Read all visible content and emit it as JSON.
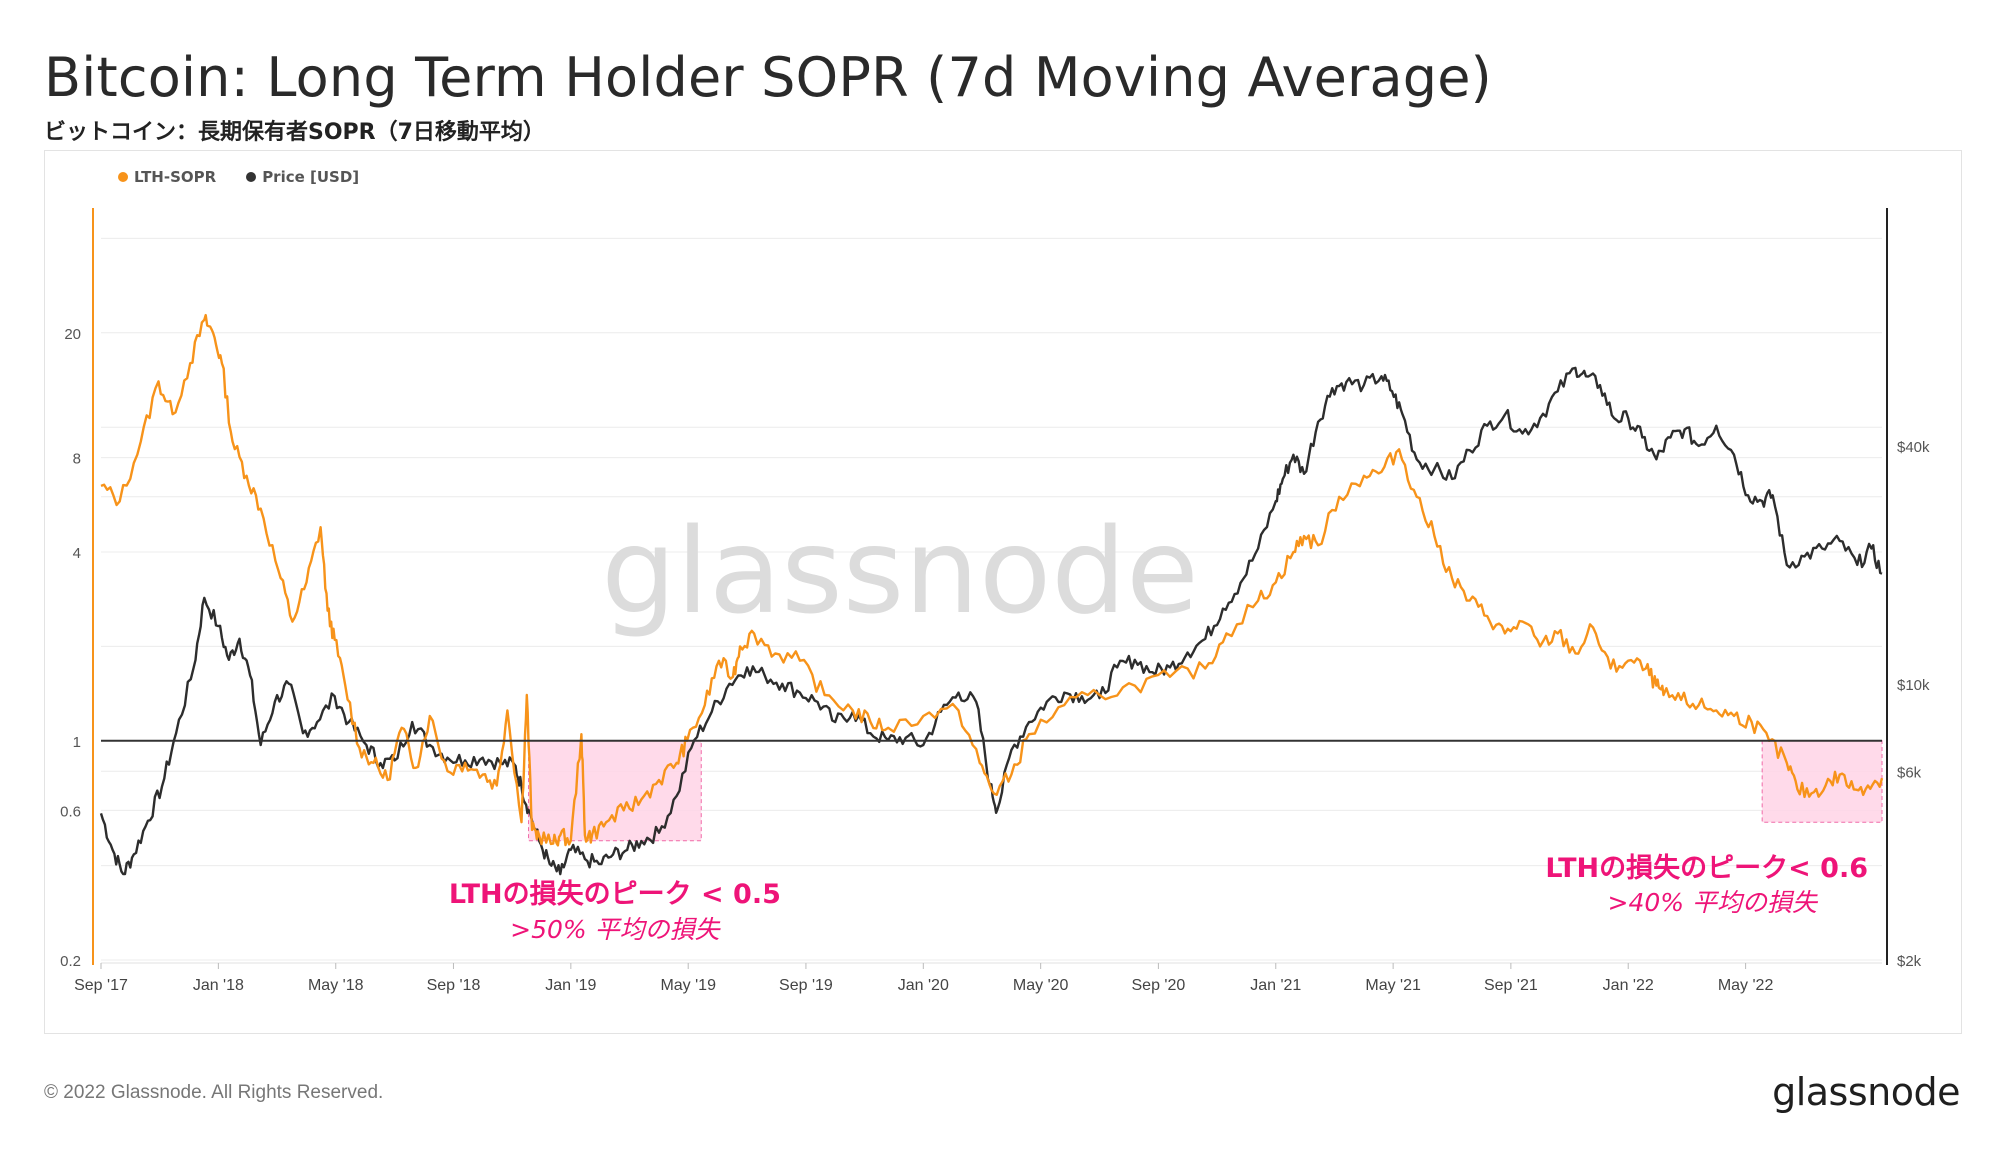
{
  "header": {
    "title": "Bitcoin: Long Term Holder SOPR (7d Moving Average)",
    "subtitle": "ビットコイン：長期保有者SOPR（7日移動平均）"
  },
  "legend": [
    {
      "label": "LTH-SOPR",
      "color": "#f7931a"
    },
    {
      "label": "Price [USD]",
      "color": "#333333"
    }
  ],
  "watermark": "glassnode",
  "footer": {
    "copyright": "© 2022 Glassnode. All Rights Reserved.",
    "logo": "glassnode"
  },
  "colors": {
    "sopr": "#f7931a",
    "price": "#2d2d2d",
    "highlight_fill": "#ffd3e6",
    "highlight_border": "#f06aa8",
    "annotation": "#ee1478",
    "grid": "#ececec"
  },
  "chart_data": {
    "type": "line",
    "title": "Bitcoin: Long Term Holder SOPR (7d Moving Average)",
    "x_range": [
      "2017-09-01",
      "2022-09-25"
    ],
    "x_ticks": [
      {
        "label": "Sep '17",
        "t": 2017.667
      },
      {
        "label": "Jan '18",
        "t": 2018.0
      },
      {
        "label": "May '18",
        "t": 2018.333
      },
      {
        "label": "Sep '18",
        "t": 2018.667
      },
      {
        "label": "Jan '19",
        "t": 2019.0
      },
      {
        "label": "May '19",
        "t": 2019.333
      },
      {
        "label": "Sep '19",
        "t": 2019.667
      },
      {
        "label": "Jan '20",
        "t": 2020.0
      },
      {
        "label": "May '20",
        "t": 2020.333
      },
      {
        "label": "Sep '20",
        "t": 2020.667
      },
      {
        "label": "Jan '21",
        "t": 2021.0
      },
      {
        "label": "May '21",
        "t": 2021.333
      },
      {
        "label": "Sep '21",
        "t": 2021.667
      },
      {
        "label": "Jan '22",
        "t": 2022.0
      },
      {
        "label": "May '22",
        "t": 2022.333
      }
    ],
    "y_left": {
      "name": "LTH-SOPR",
      "scale": "log",
      "range": [
        0.2,
        50
      ],
      "ticks": [
        {
          "label": "0.2",
          "v": 0.2
        },
        {
          "label": "0.6",
          "v": 0.6
        },
        {
          "label": "1",
          "v": 1
        },
        {
          "label": "4",
          "v": 4
        },
        {
          "label": "8",
          "v": 8
        },
        {
          "label": "20",
          "v": 20
        }
      ]
    },
    "y_right": {
      "name": "Price [USD]",
      "scale": "log",
      "range": [
        2000,
        160000
      ],
      "ticks": [
        {
          "label": "$2k",
          "v": 2000
        },
        {
          "label": "$6k",
          "v": 6000
        },
        {
          "label": "$10k",
          "v": 10000
        },
        {
          "label": "$40k",
          "v": 40000
        }
      ]
    },
    "reference_line": {
      "y": 1
    },
    "series": [
      {
        "name": "LTH-SOPR",
        "t": [
          2017.667,
          2017.72,
          2017.78,
          2017.83,
          2017.87,
          2017.92,
          2017.96,
          2017.985,
          2018.01,
          2018.04,
          2018.08,
          2018.12,
          2018.17,
          2018.21,
          2018.25,
          2018.29,
          2018.31,
          2018.33,
          2018.36,
          2018.4,
          2018.44,
          2018.48,
          2018.52,
          2018.56,
          2018.6,
          2018.65,
          2018.7,
          2018.75,
          2018.79,
          2018.82,
          2018.86,
          2018.875,
          2018.89,
          2018.91,
          2018.95,
          2018.97,
          2019.0,
          2019.03,
          2019.04,
          2019.06,
          2019.1,
          2019.15,
          2019.2,
          2019.25,
          2019.3,
          2019.33,
          2019.38,
          2019.42,
          2019.46,
          2019.48,
          2019.52,
          2019.58,
          2019.65,
          2019.72,
          2019.8,
          2019.85,
          2019.9,
          2020.0,
          2020.1,
          2020.16,
          2020.2,
          2020.25,
          2020.3,
          2020.4,
          2020.5,
          2020.6,
          2020.7,
          2020.8,
          2020.86,
          2020.95,
          2021.0,
          2021.05,
          2021.08,
          2021.12,
          2021.18,
          2021.25,
          2021.3,
          2021.35,
          2021.4,
          2021.45,
          2021.5,
          2021.55,
          2021.6,
          2021.65,
          2021.7,
          2021.75,
          2021.8,
          2021.85,
          2021.9,
          2021.95,
          2022.0,
          2022.05,
          2022.08,
          2022.1,
          2022.15,
          2022.2,
          2022.25,
          2022.3,
          2022.35,
          2022.4,
          2022.45,
          2022.48,
          2022.52,
          2022.56,
          2022.6,
          2022.64,
          2022.68,
          2022.72
        ],
        "values": [
          6.5,
          5.8,
          9.0,
          14.0,
          11.0,
          16.0,
          22.0,
          20.0,
          16.0,
          9.0,
          7.0,
          5.5,
          3.5,
          2.4,
          3.2,
          4.8,
          2.6,
          2.1,
          1.5,
          0.95,
          0.85,
          0.75,
          1.1,
          0.82,
          1.2,
          0.8,
          0.85,
          0.78,
          0.72,
          1.25,
          0.55,
          1.4,
          0.52,
          0.5,
          0.47,
          0.5,
          0.48,
          1.05,
          0.5,
          0.5,
          0.55,
          0.6,
          0.65,
          0.75,
          0.85,
          1.0,
          1.3,
          1.8,
          1.6,
          2.0,
          2.2,
          1.9,
          1.8,
          1.4,
          1.25,
          1.15,
          1.1,
          1.2,
          1.25,
          0.85,
          0.68,
          0.78,
          1.05,
          1.3,
          1.4,
          1.5,
          1.6,
          1.7,
          2.2,
          2.8,
          3.2,
          4.0,
          4.5,
          4.2,
          6.0,
          7.0,
          7.2,
          8.5,
          6.0,
          4.5,
          3.3,
          2.8,
          2.5,
          2.2,
          2.4,
          2.0,
          2.2,
          1.9,
          2.3,
          1.7,
          1.8,
          1.7,
          1.5,
          1.4,
          1.35,
          1.3,
          1.25,
          1.2,
          1.15,
          1.0,
          0.85,
          0.7,
          0.68,
          0.72,
          0.78,
          0.7,
          0.72,
          0.76
        ]
      },
      {
        "name": "Price [USD]",
        "t": [
          2017.667,
          2017.7,
          2017.73,
          2017.76,
          2017.8,
          2017.84,
          2017.88,
          2017.93,
          2017.96,
          2018.0,
          2018.03,
          2018.06,
          2018.09,
          2018.12,
          2018.16,
          2018.2,
          2018.24,
          2018.28,
          2018.33,
          2018.37,
          2018.42,
          2018.46,
          2018.5,
          2018.55,
          2018.6,
          2018.65,
          2018.7,
          2018.75,
          2018.8,
          2018.84,
          2018.86,
          2018.88,
          2018.91,
          2018.94,
          2018.97,
          2019.0,
          2019.04,
          2019.08,
          2019.12,
          2019.16,
          2019.2,
          2019.25,
          2019.3,
          2019.35,
          2019.4,
          2019.45,
          2019.5,
          2019.55,
          2019.6,
          2019.65,
          2019.7,
          2019.75,
          2019.8,
          2019.85,
          2019.9,
          2019.95,
          2020.0,
          2020.05,
          2020.1,
          2020.15,
          2020.19,
          2020.21,
          2020.25,
          2020.3,
          2020.35,
          2020.4,
          2020.45,
          2020.5,
          2020.55,
          2020.6,
          2020.65,
          2020.7,
          2020.75,
          2020.8,
          2020.85,
          2020.9,
          2020.95,
          2021.0,
          2021.02,
          2021.05,
          2021.08,
          2021.12,
          2021.16,
          2021.2,
          2021.25,
          2021.3,
          2021.33,
          2021.36,
          2021.4,
          2021.45,
          2021.5,
          2021.55,
          2021.6,
          2021.65,
          2021.7,
          2021.75,
          2021.8,
          2021.85,
          2021.88,
          2021.92,
          2021.96,
          2022.0,
          2022.04,
          2022.08,
          2022.12,
          2022.16,
          2022.2,
          2022.25,
          2022.3,
          2022.34,
          2022.38,
          2022.41,
          2022.45,
          2022.5,
          2022.55,
          2022.6,
          2022.65,
          2022.69,
          2022.72
        ],
        "values": [
          4700,
          3800,
          3300,
          3700,
          4500,
          5500,
          7500,
          11000,
          16500,
          14000,
          11500,
          13000,
          10500,
          7000,
          9000,
          10000,
          7500,
          8000,
          9300,
          8000,
          7000,
          6300,
          6400,
          8000,
          7000,
          6500,
          6400,
          6500,
          6300,
          6250,
          5500,
          4800,
          4000,
          3500,
          3300,
          3800,
          3600,
          3500,
          3700,
          3800,
          4000,
          4200,
          5200,
          7200,
          8500,
          10000,
          11000,
          10500,
          10000,
          9500,
          9000,
          8000,
          8500,
          7500,
          7200,
          7300,
          7000,
          8500,
          9500,
          9000,
          5500,
          4800,
          6800,
          8000,
          9000,
          9500,
          9300,
          9200,
          11000,
          11500,
          10700,
          11000,
          12000,
          13000,
          15500,
          18000,
          22000,
          29000,
          33000,
          38000,
          34000,
          46000,
          56000,
          58000,
          57000,
          60000,
          55000,
          48000,
          37000,
          35000,
          33000,
          39000,
          45000,
          48000,
          43000,
          47000,
          55000,
          63000,
          60000,
          57000,
          47000,
          47000,
          42000,
          37000,
          42000,
          44000,
          40000,
          45000,
          38000,
          30000,
          29000,
          30000,
          20000,
          21000,
          22000,
          23000,
          20000,
          22000,
          19000
        ]
      }
    ],
    "highlights": [
      {
        "t0": 2018.88,
        "t1": 2019.37,
        "y_low": 0.48,
        "y_high": 1.0
      },
      {
        "t0": 2022.38,
        "t1": 2022.72,
        "y_low": 0.55,
        "y_high": 1.0
      }
    ],
    "annotations": [
      {
        "line1": "LTHの損失のピーク < 0.5",
        "line2": ">50% 平均の損失",
        "anchor": "below-left-box"
      },
      {
        "line1": "LTHの損失のピーク< 0.6",
        "line2": ">40% 平均の損失",
        "anchor": "below-right-box"
      }
    ]
  }
}
